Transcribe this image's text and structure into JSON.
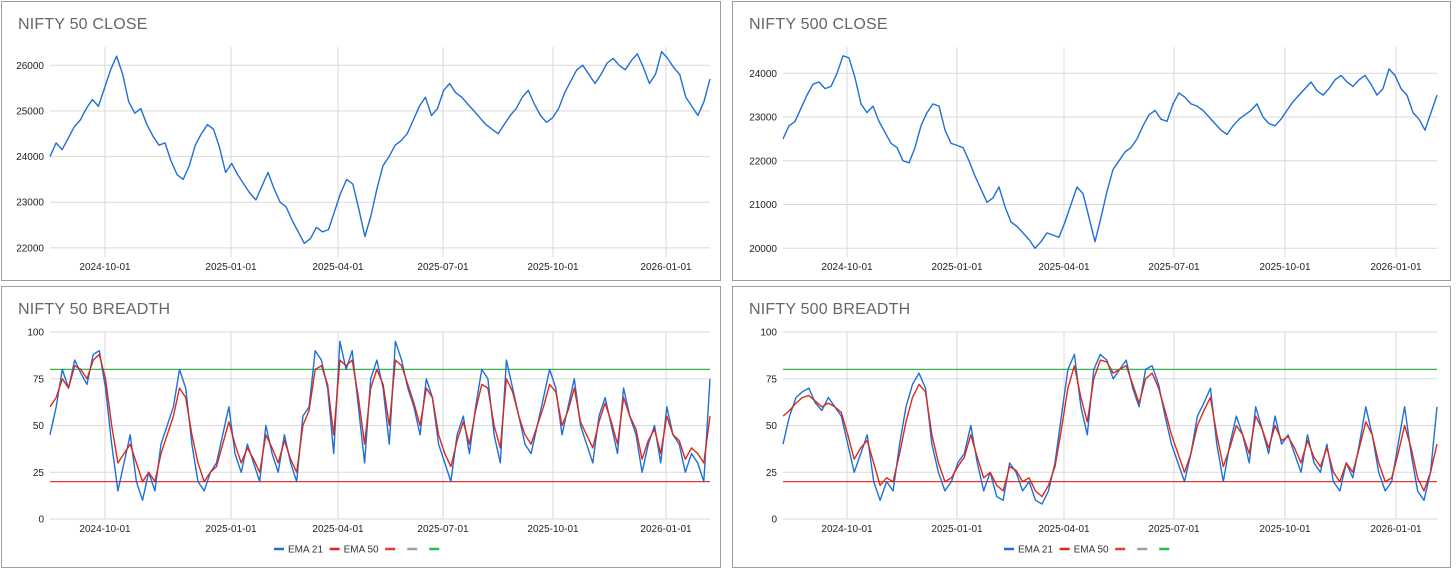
{
  "colors": {
    "blue": "#1f6fd6",
    "red": "#d62b20",
    "grid": "#d9d9d9",
    "green": "#3cb44b",
    "redline": "#e53935",
    "gray": "#9e9e9e",
    "greenleg": "#21c24a"
  },
  "legend": {
    "ema21": "EMA 21",
    "ema50": "EMA 50"
  },
  "chart_data": [
    {
      "type": "line",
      "title": "NIFTY 50 CLOSE",
      "ylim": [
        21800,
        26400
      ],
      "yticks": [
        "22000",
        "23000",
        "24000",
        "25000",
        "26000"
      ],
      "xticks": [
        "2024-10-01",
        "2025-01-01",
        "2025-04-01",
        "2025-07-01",
        "2025-10-01",
        "2026-01-01"
      ],
      "series": [
        {
          "values": [
            24000,
            24300,
            24150,
            24400,
            24650,
            24800,
            25050,
            25250,
            25100,
            25500,
            25900,
            26200,
            25800,
            25200,
            24950,
            25050,
            24700,
            24450,
            24250,
            24300,
            23900,
            23600,
            23500,
            23800,
            24250,
            24500,
            24700,
            24600,
            24200,
            23650,
            23850,
            23600,
            23400,
            23200,
            23050,
            23350,
            23650,
            23300,
            23000,
            22900,
            22600,
            22350,
            22100,
            22200,
            22450,
            22350,
            22400,
            22800,
            23200,
            23500,
            23400,
            22850,
            22250,
            22700,
            23300,
            23800,
            24000,
            24250,
            24350,
            24500,
            24800,
            25100,
            25300,
            24900,
            25050,
            25450,
            25600,
            25400,
            25300,
            25150,
            25000,
            24850,
            24700,
            24600,
            24500,
            24700,
            24900,
            25050,
            25300,
            25450,
            25150,
            24900,
            24750,
            24850,
            25050,
            25400,
            25650,
            25900,
            26000,
            25800,
            25600,
            25800,
            26050,
            26150,
            26000,
            25900,
            26100,
            26250,
            25950,
            25600,
            25800,
            26300,
            26150,
            25950,
            25800,
            25300,
            25100,
            24900,
            25200,
            25700
          ]
        }
      ]
    },
    {
      "type": "line",
      "title": "NIFTY 500 CLOSE",
      "ylim": [
        19800,
        24600
      ],
      "yticks": [
        "20000",
        "21000",
        "22000",
        "23000",
        "24000"
      ],
      "xticks": [
        "2024-10-01",
        "2025-01-01",
        "2025-04-01",
        "2025-07-01",
        "2025-10-01",
        "2026-01-01"
      ],
      "series": [
        {
          "values": [
            22500,
            22800,
            22900,
            23200,
            23500,
            23750,
            23800,
            23650,
            23700,
            24000,
            24400,
            24350,
            23900,
            23300,
            23100,
            23250,
            22900,
            22650,
            22400,
            22300,
            22000,
            21950,
            22300,
            22800,
            23100,
            23300,
            23250,
            22700,
            22400,
            22350,
            22300,
            22000,
            21650,
            21350,
            21050,
            21150,
            21400,
            20950,
            20600,
            20500,
            20350,
            20200,
            20000,
            20150,
            20350,
            20300,
            20250,
            20600,
            21000,
            21400,
            21250,
            20700,
            20150,
            20700,
            21300,
            21800,
            22000,
            22200,
            22300,
            22500,
            22800,
            23050,
            23150,
            22950,
            22900,
            23300,
            23550,
            23450,
            23300,
            23250,
            23150,
            23000,
            22850,
            22700,
            22600,
            22800,
            22950,
            23050,
            23150,
            23300,
            23000,
            22850,
            22800,
            22950,
            23150,
            23350,
            23500,
            23650,
            23800,
            23600,
            23500,
            23650,
            23850,
            23950,
            23800,
            23700,
            23850,
            23950,
            23750,
            23500,
            23650,
            24100,
            23950,
            23650,
            23500,
            23100,
            22950,
            22700,
            23100,
            23500
          ]
        }
      ]
    },
    {
      "type": "line",
      "title": "NIFTY 50 BREADTH",
      "ylim": [
        0,
        100
      ],
      "yticks": [
        "0",
        "25",
        "50",
        "75",
        "100"
      ],
      "xticks": [
        "2024-10-01",
        "2025-01-01",
        "2025-04-01",
        "2025-07-01",
        "2025-10-01",
        "2026-01-01"
      ],
      "hlines": [
        20,
        80
      ],
      "series": [
        {
          "name": "EMA 21",
          "values": [
            45,
            60,
            80,
            70,
            85,
            78,
            72,
            88,
            90,
            70,
            40,
            15,
            30,
            45,
            20,
            10,
            25,
            15,
            40,
            50,
            60,
            80,
            70,
            40,
            20,
            15,
            25,
            30,
            45,
            60,
            35,
            25,
            40,
            30,
            20,
            50,
            35,
            25,
            45,
            30,
            20,
            55,
            60,
            90,
            85,
            70,
            35,
            95,
            80,
            90,
            60,
            30,
            75,
            85,
            70,
            40,
            95,
            85,
            70,
            60,
            45,
            75,
            65,
            40,
            30,
            20,
            45,
            55,
            35,
            60,
            80,
            75,
            45,
            30,
            85,
            70,
            55,
            40,
            35,
            50,
            65,
            80,
            70,
            45,
            60,
            75,
            50,
            40,
            30,
            55,
            65,
            50,
            35,
            70,
            55,
            45,
            25,
            40,
            50,
            30,
            60,
            45,
            40,
            25,
            35,
            30,
            20,
            75
          ]
        },
        {
          "name": "EMA 50",
          "values": [
            60,
            65,
            75,
            70,
            82,
            80,
            75,
            85,
            88,
            75,
            50,
            30,
            35,
            40,
            30,
            20,
            25,
            20,
            35,
            45,
            55,
            70,
            65,
            45,
            30,
            20,
            25,
            28,
            40,
            52,
            40,
            30,
            38,
            32,
            25,
            45,
            38,
            30,
            42,
            32,
            25,
            50,
            58,
            80,
            82,
            72,
            45,
            85,
            82,
            85,
            65,
            40,
            70,
            80,
            72,
            50,
            85,
            82,
            72,
            62,
            50,
            70,
            65,
            45,
            35,
            28,
            42,
            52,
            40,
            58,
            72,
            70,
            50,
            38,
            75,
            68,
            55,
            45,
            40,
            50,
            60,
            72,
            68,
            50,
            58,
            70,
            52,
            45,
            38,
            52,
            62,
            52,
            40,
            65,
            55,
            48,
            32,
            42,
            48,
            35,
            55,
            45,
            42,
            32,
            38,
            35,
            30,
            55
          ]
        }
      ]
    },
    {
      "type": "line",
      "title": "NIFTY 500 BREADTH",
      "ylim": [
        0,
        100
      ],
      "yticks": [
        "0",
        "25",
        "50",
        "75",
        "100"
      ],
      "xticks": [
        "2024-10-01",
        "2025-01-01",
        "2025-04-01",
        "2025-07-01",
        "2025-10-01",
        "2026-01-01"
      ],
      "hlines": [
        20,
        80
      ],
      "series": [
        {
          "name": "EMA 21",
          "values": [
            40,
            55,
            65,
            68,
            70,
            62,
            58,
            65,
            60,
            55,
            40,
            25,
            35,
            45,
            20,
            10,
            20,
            15,
            40,
            60,
            72,
            78,
            70,
            40,
            25,
            15,
            20,
            30,
            35,
            50,
            30,
            15,
            25,
            12,
            10,
            30,
            25,
            15,
            20,
            10,
            8,
            15,
            30,
            55,
            80,
            88,
            60,
            45,
            80,
            88,
            85,
            75,
            80,
            85,
            70,
            60,
            80,
            82,
            72,
            55,
            40,
            30,
            20,
            35,
            55,
            62,
            70,
            40,
            20,
            40,
            55,
            45,
            30,
            60,
            48,
            35,
            55,
            40,
            45,
            35,
            25,
            45,
            30,
            25,
            40,
            20,
            15,
            30,
            22,
            40,
            60,
            45,
            25,
            15,
            20,
            40,
            60,
            35,
            15,
            10,
            25,
            60
          ]
        },
        {
          "name": "EMA 50",
          "values": [
            55,
            58,
            62,
            65,
            66,
            63,
            60,
            62,
            60,
            57,
            45,
            32,
            38,
            42,
            30,
            18,
            22,
            20,
            35,
            52,
            65,
            72,
            68,
            45,
            30,
            20,
            22,
            28,
            33,
            45,
            33,
            22,
            25,
            18,
            15,
            28,
            26,
            20,
            22,
            15,
            12,
            18,
            28,
            48,
            70,
            82,
            65,
            52,
            75,
            85,
            84,
            78,
            80,
            82,
            72,
            62,
            75,
            78,
            70,
            58,
            45,
            35,
            25,
            35,
            50,
            58,
            65,
            45,
            28,
            38,
            50,
            45,
            35,
            55,
            48,
            38,
            50,
            42,
            44,
            38,
            30,
            42,
            33,
            28,
            38,
            25,
            20,
            30,
            25,
            38,
            52,
            45,
            30,
            20,
            22,
            35,
            50,
            38,
            22,
            15,
            25,
            40
          ]
        }
      ]
    }
  ]
}
